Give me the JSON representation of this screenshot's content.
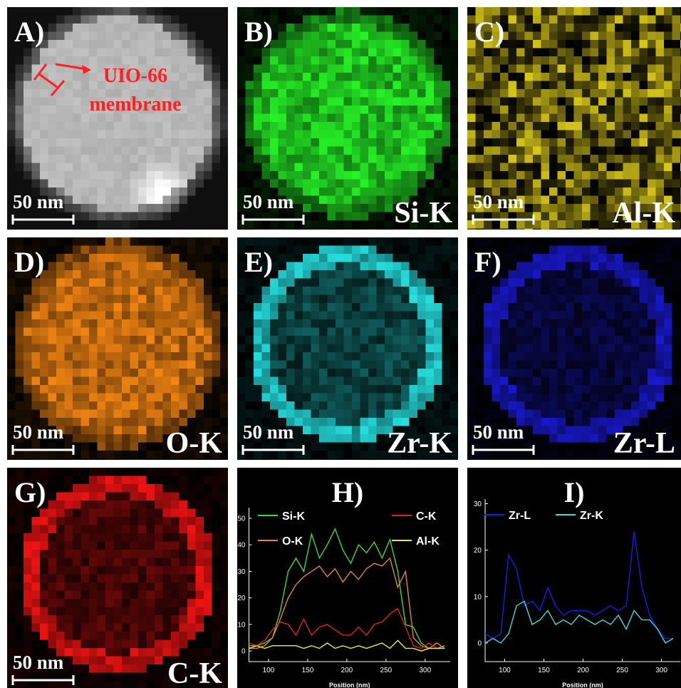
{
  "panels": [
    {
      "label": "A)",
      "scale_bar": "50 nm",
      "annotation": [
        "UIO-66",
        "membrane"
      ]
    },
    {
      "label": "B)",
      "scale_bar": "50 nm",
      "element": "Si-K"
    },
    {
      "label": "C)",
      "scale_bar": "50 nm",
      "element": "Al-K"
    },
    {
      "label": "D)",
      "scale_bar": "50 nm",
      "element": "O-K"
    },
    {
      "label": "E)",
      "scale_bar": "50 nm",
      "element": "Zr-K"
    },
    {
      "label": "F)",
      "scale_bar": "50 nm",
      "element": "Zr-L"
    },
    {
      "label": "G)",
      "scale_bar": "50 nm",
      "element": "C-K"
    }
  ],
  "chart_data": [
    {
      "type": "line",
      "title": "H)",
      "x_label": "Position (nm)",
      "x": [
        75,
        85,
        95,
        105,
        115,
        125,
        135,
        145,
        155,
        165,
        175,
        185,
        195,
        205,
        215,
        225,
        235,
        245,
        255,
        265,
        275,
        285,
        295,
        305,
        315,
        325
      ],
      "series": [
        {
          "name": "Si-K",
          "color": "#33dd33",
          "values": [
            2,
            2,
            3,
            5,
            15,
            30,
            35,
            30,
            44,
            35,
            40,
            46,
            38,
            33,
            40,
            37,
            41,
            35,
            42,
            30,
            10,
            9,
            3,
            1,
            1,
            2
          ]
        },
        {
          "name": "O-K",
          "color": "#e8842a",
          "values": [
            1,
            1,
            2,
            5,
            12,
            20,
            25,
            28,
            30,
            32,
            28,
            31,
            26,
            30,
            27,
            31,
            33,
            32,
            35,
            24,
            30,
            5,
            2,
            1,
            3,
            1
          ]
        },
        {
          "name": "C-K",
          "color": "#e02020",
          "values": [
            3,
            2,
            4,
            8,
            11,
            10,
            6,
            12,
            6,
            9,
            10,
            8,
            6,
            6,
            9,
            6,
            10,
            11,
            14,
            16,
            9,
            2,
            1,
            3,
            1,
            1
          ]
        },
        {
          "name": "Al-K",
          "color": "#eeee22",
          "values": [
            1,
            2,
            1,
            2,
            2,
            2,
            2,
            1,
            2,
            1,
            3,
            1,
            2,
            1,
            2,
            1,
            2,
            3,
            1,
            4,
            1,
            1,
            0,
            1,
            1,
            1
          ]
        }
      ],
      "xlim": [
        75,
        332
      ],
      "ylim": [
        -4,
        54
      ],
      "xticks": [
        100,
        150,
        200,
        250,
        300
      ],
      "yticks": [
        0,
        10,
        20,
        30,
        40,
        50
      ]
    },
    {
      "type": "line",
      "title": "I)",
      "x_label": "Position (nm)",
      "x": [
        75,
        85,
        95,
        105,
        115,
        125,
        135,
        145,
        155,
        165,
        175,
        185,
        195,
        205,
        215,
        225,
        235,
        245,
        255,
        265,
        275,
        285,
        295,
        305,
        315
      ],
      "series": [
        {
          "name": "Zr-L",
          "color": "#1a1aee",
          "values": [
            2,
            1,
            2,
            19,
            16,
            8,
            9,
            7,
            12,
            8,
            6,
            7,
            7,
            7,
            6,
            7,
            8,
            7,
            8,
            24,
            12,
            6,
            3,
            1,
            1
          ]
        },
        {
          "name": "Zr-K",
          "color": "#33dddd",
          "values": [
            0,
            1,
            0,
            2,
            8,
            9,
            4,
            5,
            7,
            4,
            5,
            4,
            6,
            5,
            4,
            5,
            4,
            6,
            3,
            7,
            5,
            5,
            3,
            0,
            1
          ]
        }
      ],
      "xlim": [
        75,
        324
      ],
      "ylim": [
        -4,
        31
      ],
      "xticks": [
        100,
        150,
        200,
        250,
        300
      ],
      "yticks": [
        0,
        10,
        20,
        30
      ]
    }
  ]
}
